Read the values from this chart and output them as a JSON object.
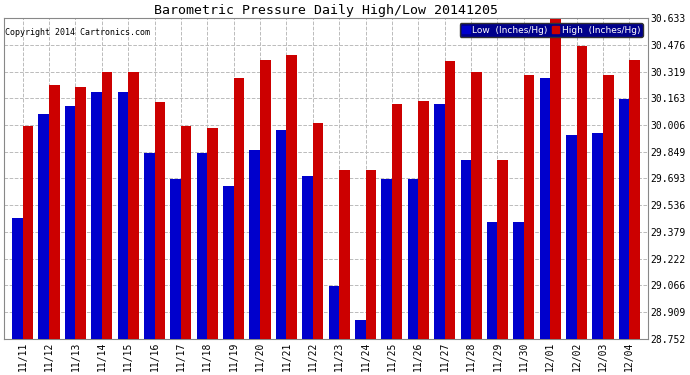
{
  "title": "Barometric Pressure Daily High/Low 20141205",
  "copyright": "Copyright 2014 Cartronics.com",
  "categories": [
    "11/11",
    "11/12",
    "11/13",
    "11/14",
    "11/15",
    "11/16",
    "11/17",
    "11/18",
    "11/19",
    "11/20",
    "11/21",
    "11/22",
    "11/23",
    "11/24",
    "11/25",
    "11/26",
    "11/27",
    "11/28",
    "11/29",
    "11/30",
    "12/01",
    "12/02",
    "12/03",
    "12/04"
  ],
  "low_values": [
    29.46,
    30.07,
    30.12,
    30.2,
    30.2,
    29.84,
    29.69,
    29.84,
    29.65,
    29.86,
    29.98,
    29.71,
    29.06,
    28.86,
    29.69,
    29.69,
    30.13,
    29.8,
    29.44,
    29.44,
    30.28,
    29.95,
    29.96,
    30.16
  ],
  "high_values": [
    30.0,
    30.24,
    30.23,
    30.32,
    30.32,
    30.14,
    30.0,
    29.99,
    30.28,
    30.39,
    30.42,
    30.02,
    29.74,
    29.74,
    30.13,
    30.15,
    30.38,
    30.32,
    29.8,
    30.3,
    30.63,
    30.47,
    30.3,
    30.39
  ],
  "ylim_min": 28.752,
  "ylim_max": 30.633,
  "yticks": [
    28.752,
    28.909,
    29.066,
    29.222,
    29.379,
    29.536,
    29.693,
    29.849,
    30.006,
    30.163,
    30.319,
    30.476,
    30.633
  ],
  "low_color": "#0000cc",
  "high_color": "#cc0000",
  "bg_color": "#ffffff",
  "grid_color": "#bbbbbb",
  "bar_width": 0.4,
  "legend_low_label": "Low  (Inches/Hg)",
  "legend_high_label": "High  (Inches/Hg)"
}
